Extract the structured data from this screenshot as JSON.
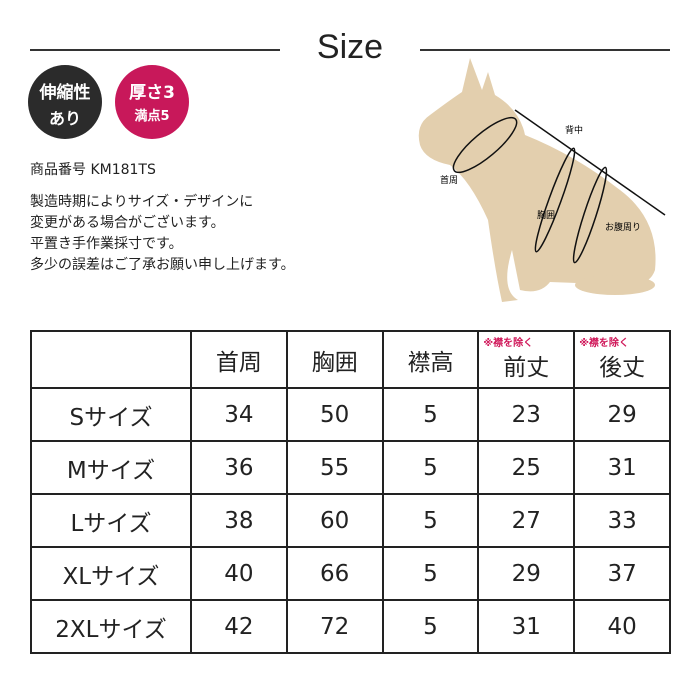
{
  "title": "Size",
  "badges": [
    {
      "line1": "伸縮性",
      "line2": "あり",
      "color": "#2b2b2b"
    },
    {
      "line1": "厚さ3",
      "line2": "満点5",
      "color": "#c8185a"
    }
  ],
  "product_number": "商品番号 KM181TS",
  "notes": [
    "製造時期によりサイズ・デザインに",
    "変更がある場合がございます。",
    "平置き手作業採寸です。",
    "多少の誤差はご了承お願い申し上げます。"
  ],
  "diagram_labels": {
    "back": "背中",
    "neck": "首周",
    "chest": "胸囲",
    "belly": "お腹周り"
  },
  "table": {
    "headers": [
      "",
      "首周",
      "胸囲",
      "襟高",
      "前丈",
      "後丈"
    ],
    "header_notes": [
      "",
      "",
      "",
      "",
      "※襟を除く",
      "※襟を除く"
    ],
    "rows": [
      [
        "Sサイズ",
        "34",
        "50",
        "5",
        "23",
        "29"
      ],
      [
        "Mサイズ",
        "36",
        "55",
        "5",
        "25",
        "31"
      ],
      [
        "Lサイズ",
        "38",
        "60",
        "5",
        "27",
        "33"
      ],
      [
        "XLサイズ",
        "40",
        "66",
        "5",
        "29",
        "37"
      ],
      [
        "2XLサイズ",
        "42",
        "72",
        "5",
        "31",
        "40"
      ]
    ]
  }
}
